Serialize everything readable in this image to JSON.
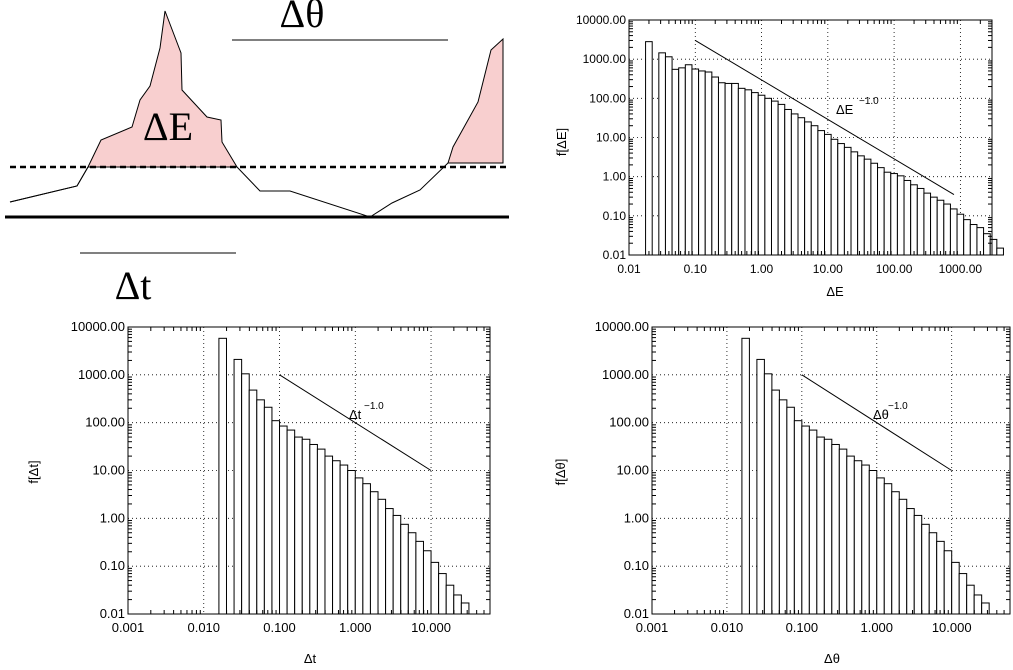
{
  "diagram": {
    "labels": {
      "dtheta": "Δθ",
      "dE": "ΔE",
      "dt": "Δt"
    },
    "fill_color": "#f8cfcf"
  },
  "chart_data": [
    {
      "type": "bar",
      "scale": "log-log",
      "grid": true,
      "xlabel": "ΔE",
      "ylabel": "f[ΔE]",
      "xlim": [
        0.01,
        3000
      ],
      "ylim": [
        0.01,
        10000
      ],
      "x_ticks": [
        "0.01",
        "0.10",
        "1.00",
        "10.00",
        "100.00",
        "1000.00"
      ],
      "y_ticks": [
        "0.01",
        "0.10",
        "1.00",
        "10.00",
        "100.00",
        "1000.00",
        "10000.00"
      ],
      "annotation": {
        "base": "ΔE",
        "exponent": "−1.0"
      },
      "powerlaw_line": {
        "x": [
          0.1,
          800
        ],
        "y": [
          3000,
          0.35
        ]
      },
      "bins": {
        "log_start": -1.75,
        "log_width": 0.1,
        "start_index": 0
      },
      "values": [
        2800,
        0,
        1450,
        1150,
        550,
        600,
        720,
        560,
        500,
        470,
        350,
        250,
        240,
        240,
        180,
        165,
        140,
        120,
        100,
        85,
        70,
        52,
        40,
        32,
        25,
        20,
        15,
        12,
        9,
        7,
        5.6,
        4.3,
        3.4,
        2.8,
        2.2,
        1.7,
        1.3,
        1.2,
        1.05,
        0.8,
        0.62,
        0.5,
        0.38,
        0.3,
        0.25,
        0.2,
        0.15,
        0.11,
        0.08,
        0.06,
        0.05,
        0.035,
        0.025,
        0.015
      ]
    },
    {
      "type": "bar",
      "scale": "log-log",
      "grid": true,
      "xlabel": "Δt",
      "ylabel": "f[Δt]",
      "xlim": [
        0.001,
        60
      ],
      "ylim": [
        0.01,
        10000
      ],
      "x_ticks": [
        "0.001",
        "0.010",
        "0.100",
        "1.000",
        "10.000"
      ],
      "y_ticks": [
        "0.01",
        "0.10",
        "1.00",
        "10.00",
        "100.00",
        "1000.00",
        "10000.00"
      ],
      "annotation": {
        "base": "Δt",
        "exponent": "−1.0"
      },
      "powerlaw_line": {
        "x": [
          0.1,
          10
        ],
        "y": [
          1000,
          10
        ]
      },
      "bins": {
        "log_start": -1.8,
        "log_width": 0.1,
        "start_index": 0
      },
      "values": [
        5800,
        0,
        2100,
        1050,
        480,
        300,
        210,
        110,
        85,
        70,
        50,
        45,
        35,
        28,
        20,
        16,
        13,
        10,
        7,
        5.3,
        3.6,
        2.5,
        1.6,
        1.15,
        0.75,
        0.5,
        0.33,
        0.21,
        0.12,
        0.07,
        0.04,
        0.025,
        0.017
      ]
    },
    {
      "type": "bar",
      "scale": "log-log",
      "grid": true,
      "xlabel": "Δθ",
      "ylabel": "f[Δθ]",
      "xlim": [
        0.001,
        60
      ],
      "ylim": [
        0.01,
        10000
      ],
      "x_ticks": [
        "0.001",
        "0.010",
        "0.100",
        "1.000",
        "10.000"
      ],
      "y_ticks": [
        "0.01",
        "0.10",
        "1.00",
        "10.00",
        "100.00",
        "1000.00",
        "10000.00"
      ],
      "annotation": {
        "base": "Δθ",
        "exponent": "−1.0"
      },
      "powerlaw_line": {
        "x": [
          0.1,
          10
        ],
        "y": [
          1000,
          10
        ]
      },
      "bins": {
        "log_start": -1.8,
        "log_width": 0.1,
        "start_index": 0
      },
      "values": [
        5800,
        0,
        2100,
        1050,
        480,
        300,
        210,
        110,
        85,
        70,
        50,
        45,
        35,
        28,
        20,
        16,
        13,
        10,
        7,
        5.3,
        3.6,
        2.5,
        1.6,
        1.15,
        0.75,
        0.5,
        0.33,
        0.21,
        0.12,
        0.07,
        0.04,
        0.025,
        0.017
      ]
    }
  ]
}
